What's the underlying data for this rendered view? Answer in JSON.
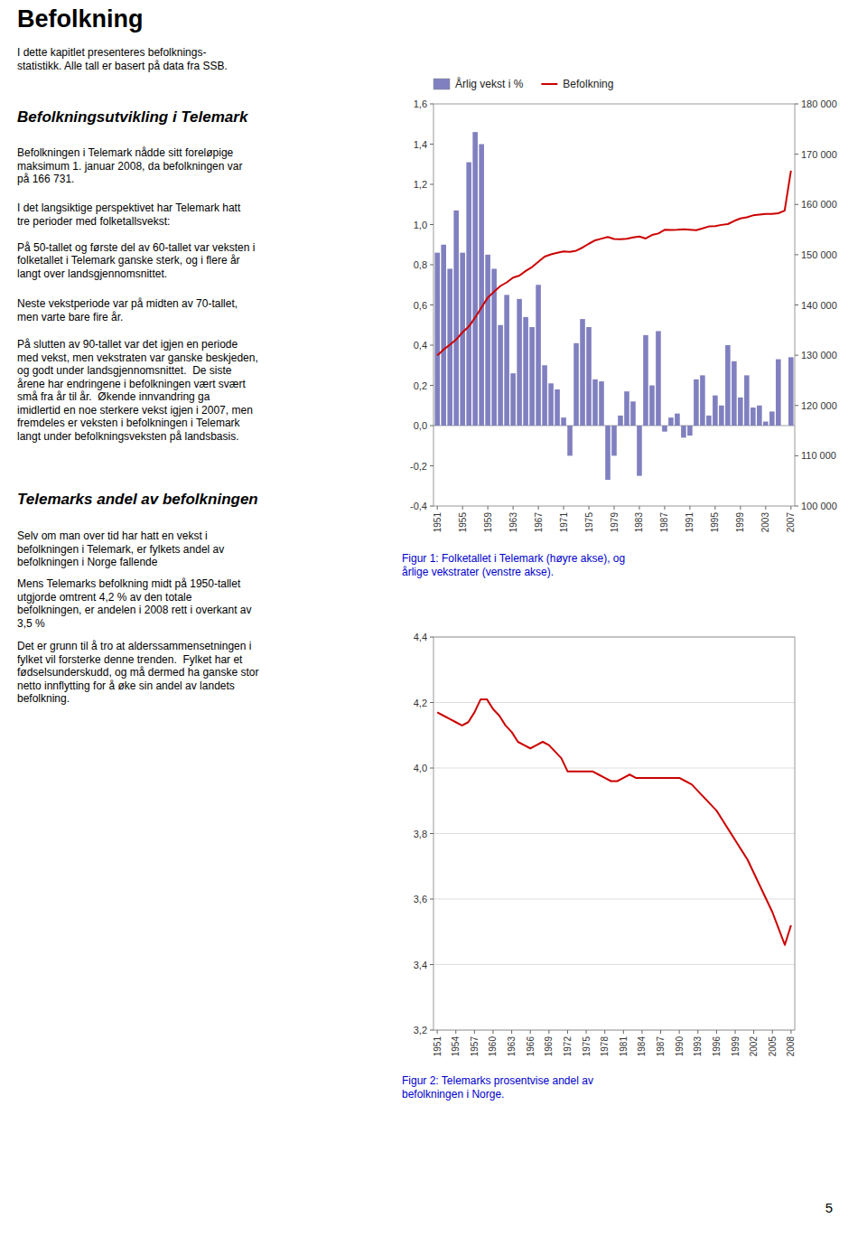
{
  "title": "Befolkning",
  "annotations": [
    {
      "type": "paragraph",
      "text": "I dette kapitlet presenteres befolknings-\nstatistikk. Alle tall er basert på data fra SSB."
    },
    {
      "type": "heading",
      "text": "Befolkningsutvikling i Telemark"
    },
    {
      "type": "paragraph",
      "text": "Befolkningen i Telemark nådde sitt foreløpige\nmaksimum 1. januar 2008, da befolkningen var\npå 166 731."
    },
    {
      "type": "paragraph",
      "text": "I det langsiktige perspektivet har Telemark hatt\ntre perioder med folketallsvekst:\n\nPå 50-tallet og første del av 60-tallet var veksten i\nfolketallet i Telemark ganske sterk, og i flere år\nlangt over landsgjennomsnittet."
    },
    {
      "type": "paragraph",
      "text": "Neste vekstperiode var på midten av 70-tallet,\nmen varte bare fire år."
    },
    {
      "type": "paragraph",
      "text": "På slutten av 90-tallet var det igjen en periode\nmed vekst, men vekstraten var ganske beskjeden,\nog godt under landsgjennomsnittet.  De siste\nårene har endringene i befolkningen vært svært\nsmå fra år til år.  Økende innvandring ga\nimidlertid en noe sterkere vekst igjen i 2007, men\nfremdeles er veksten i befolkningen i Telemark\nlangt under befolkningsveksten på landsbasis."
    },
    {
      "type": "heading",
      "text": "Telemarks andel av befolkningen"
    },
    {
      "type": "paragraph",
      "text": "Selv om man over tid har hatt en vekst i\nbefolkningen i Telemark, er fylkets andel av\nbefolkningen i Norge fallende"
    },
    {
      "type": "paragraph",
      "text": "Mens Telemarks befolkning midt på 1950-tallet\nutgjorde omtrent 4,2 % av den totale\nbefolkningen, er andelen i 2008 rett i overkant av\n3,5 %"
    },
    {
      "type": "paragraph",
      "text": "Det er grunn til å tro at alderssammensetningen i\nfylket vil forsterke denne trenden.  Fylket har et\nfødselsunderskudd, og må dermed ha ganske stor\nnetto innflytting for å øke sin andel av landets\nbefolkning."
    },
    {
      "type": "page_number",
      "text": "5"
    }
  ],
  "chart_data": [
    {
      "type": "bar",
      "title": "Figur 1: Folketallet i Telemark (høyre akse), og\nårlige vekstrater (venstre akse).",
      "title_color": "#0000cc",
      "x": [
        1951,
        1952,
        1953,
        1954,
        1955,
        1956,
        1957,
        1958,
        1959,
        1960,
        1961,
        1962,
        1963,
        1964,
        1965,
        1966,
        1967,
        1968,
        1969,
        1970,
        1971,
        1972,
        1973,
        1974,
        1975,
        1976,
        1977,
        1978,
        1979,
        1980,
        1981,
        1982,
        1983,
        1984,
        1985,
        1986,
        1987,
        1988,
        1989,
        1990,
        1991,
        1992,
        1993,
        1994,
        1995,
        1996,
        1997,
        1998,
        1999,
        2000,
        2001,
        2002,
        2003,
        2004,
        2005,
        2006,
        2007
      ],
      "series": [
        {
          "name": "Årlig vekst i %",
          "type": "bar",
          "color": "#8080c0",
          "values": [
            0.86,
            0.9,
            0.78,
            1.07,
            0.86,
            1.31,
            1.46,
            1.4,
            0.85,
            0.78,
            0.5,
            0.65,
            0.26,
            0.63,
            0.54,
            0.49,
            0.7,
            0.3,
            0.21,
            0.18,
            0.04,
            -0.15,
            0.41,
            0.53,
            0.49,
            0.23,
            0.22,
            -0.27,
            -0.15,
            0.05,
            0.17,
            0.12,
            -0.25,
            0.45,
            0.2,
            0.47,
            -0.03,
            0.04,
            0.06,
            -0.06,
            -0.05,
            0.23,
            0.25,
            0.05,
            0.15,
            0.1,
            0.4,
            0.32,
            0.14,
            0.25,
            0.09,
            0.1,
            0.02,
            0.07,
            0.33,
            0.0,
            0.34
          ]
        },
        {
          "name": "Befolkning",
          "type": "line",
          "color": "#cc0000",
          "axis": "y2",
          "values": [
            130000,
            131118,
            132100,
            133130,
            134556,
            135714,
            137494,
            139502,
            141457,
            142661,
            143775,
            144495,
            145435,
            145832,
            146754,
            147546,
            148572,
            149613,
            150061,
            150369,
            150641,
            150580,
            150804,
            151420,
            152179,
            152855,
            153191,
            153528,
            153114,
            153094,
            153168,
            153428,
            153611,
            153228,
            153918,
            154224,
            154949,
            154899,
            154961,
            155053,
            154960,
            154877,
            155233,
            155620,
            155699,
            155932,
            156088,
            156713,
            157213,
            157433,
            157826,
            157967,
            158122,
            158133,
            158244,
            158766,
            166731
          ]
        }
      ],
      "xlim": [
        1950.4,
        2007.6
      ],
      "xticks": [
        1951,
        1955,
        1959,
        1963,
        1967,
        1971,
        1975,
        1979,
        1983,
        1987,
        1991,
        1995,
        1999,
        2003,
        2007
      ],
      "ylim": [
        -0.4,
        1.6
      ],
      "yticks": [
        {
          "value": -0.4,
          "label": "-0,4"
        },
        {
          "value": -0.2,
          "label": "-0,2"
        },
        {
          "value": 0.0,
          "label": "0,0"
        },
        {
          "value": 0.2,
          "label": "0,2"
        },
        {
          "value": 0.4,
          "label": "0,4"
        },
        {
          "value": 0.6,
          "label": "0,6"
        },
        {
          "value": 0.8,
          "label": "0,8"
        },
        {
          "value": 1.0,
          "label": "1,0"
        },
        {
          "value": 1.2,
          "label": "1,2"
        },
        {
          "value": 1.4,
          "label": "1,4"
        },
        {
          "value": 1.6,
          "label": "1,6"
        }
      ],
      "y2lim": [
        100000,
        180000
      ],
      "y2ticks": [
        {
          "value": 100000,
          "label": "100 000"
        },
        {
          "value": 110000,
          "label": "110 000"
        },
        {
          "value": 120000,
          "label": "120 000"
        },
        {
          "value": 130000,
          "label": "130 000"
        },
        {
          "value": 140000,
          "label": "140 000"
        },
        {
          "value": 150000,
          "label": "150 000"
        },
        {
          "value": 160000,
          "label": "160 000"
        },
        {
          "value": 170000,
          "label": "170 000"
        },
        {
          "value": 180000,
          "label": "180 000"
        }
      ],
      "legend": "upper left",
      "grid": false
    },
    {
      "type": "line",
      "title": "Figur 2: Telemarks prosentvise andel av\nbefolkningen i Norge.",
      "title_color": "#0000cc",
      "x": [
        1951,
        1952,
        1953,
        1954,
        1955,
        1956,
        1957,
        1958,
        1959,
        1960,
        1961,
        1962,
        1963,
        1964,
        1965,
        1966,
        1967,
        1968,
        1969,
        1970,
        1971,
        1972,
        1973,
        1974,
        1975,
        1976,
        1977,
        1978,
        1979,
        1980,
        1981,
        1982,
        1983,
        1984,
        1985,
        1986,
        1987,
        1988,
        1989,
        1990,
        1991,
        1992,
        1993,
        1994,
        1995,
        1996,
        1997,
        1998,
        1999,
        2000,
        2001,
        2002,
        2003,
        2004,
        2005,
        2006,
        2007,
        2008
      ],
      "series": [
        {
          "color": "#cc0000",
          "values": [
            4.17,
            4.16,
            4.15,
            4.14,
            4.13,
            4.14,
            4.17,
            4.21,
            4.21,
            4.18,
            4.16,
            4.13,
            4.11,
            4.08,
            4.07,
            4.06,
            4.07,
            4.08,
            4.07,
            4.05,
            4.03,
            3.99,
            3.99,
            3.99,
            3.99,
            3.99,
            3.98,
            3.97,
            3.96,
            3.96,
            3.97,
            3.98,
            3.97,
            3.97,
            3.97,
            3.97,
            3.97,
            3.97,
            3.97,
            3.97,
            3.96,
            3.95,
            3.93,
            3.91,
            3.89,
            3.87,
            3.84,
            3.81,
            3.78,
            3.75,
            3.72,
            3.68,
            3.64,
            3.6,
            3.56,
            3.51,
            3.46,
            3.52
          ]
        }
      ],
      "xlim": [
        1950.4,
        2008.6
      ],
      "xticks": [
        1951,
        1954,
        1957,
        1960,
        1963,
        1966,
        1969,
        1972,
        1975,
        1978,
        1981,
        1984,
        1987,
        1990,
        1993,
        1996,
        1999,
        2002,
        2005,
        2008
      ],
      "ylim": [
        3.2,
        4.4
      ],
      "yticks": [
        {
          "value": 3.2,
          "label": "3,2"
        },
        {
          "value": 3.4,
          "label": "3,4"
        },
        {
          "value": 3.6,
          "label": "3,6"
        },
        {
          "value": 3.8,
          "label": "3,8"
        },
        {
          "value": 4.0,
          "label": "4,0"
        },
        {
          "value": 4.2,
          "label": "4,2"
        },
        {
          "value": 4.4,
          "label": "4,4"
        }
      ],
      "grid": true
    }
  ]
}
